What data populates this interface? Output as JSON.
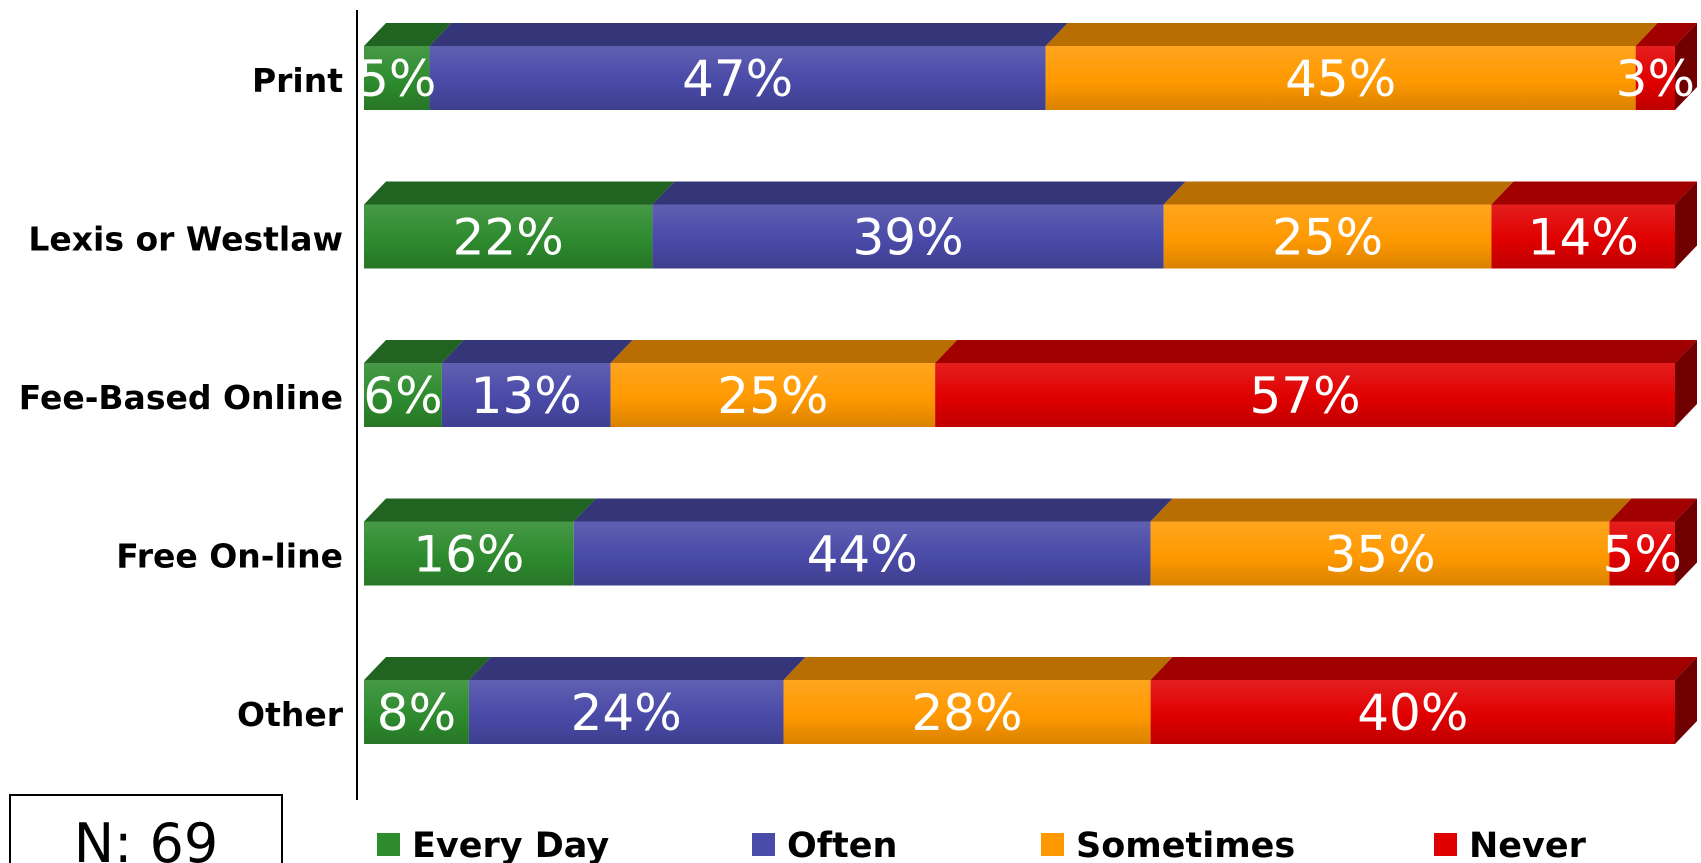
{
  "chart_data": {
    "type": "bar",
    "orientation": "horizontal",
    "stacked": true,
    "percent": true,
    "categories": [
      "Print",
      "Lexis or Westlaw",
      "Fee-Based Online",
      "Free On-line",
      "Other"
    ],
    "series": [
      {
        "name": "Every Day",
        "color": "#2e8b2e",
        "values": [
          5,
          22,
          6,
          16,
          8
        ]
      },
      {
        "name": "Often",
        "color": "#4a4aa8",
        "values": [
          47,
          39,
          13,
          44,
          24
        ]
      },
      {
        "name": "Sometimes",
        "color": "#ff9900",
        "values": [
          45,
          25,
          25,
          35,
          28
        ]
      },
      {
        "name": "Never",
        "color": "#e00000",
        "values": [
          3,
          14,
          57,
          5,
          40
        ]
      }
    ],
    "legend_position": "bottom",
    "grid": false
  },
  "note": "N: 69"
}
